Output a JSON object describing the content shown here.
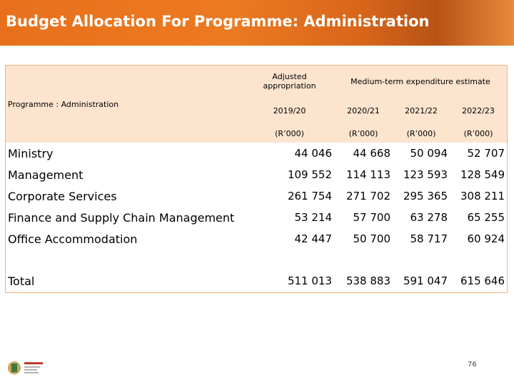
{
  "header": {
    "title": "Budget Allocation For Programme: Administration"
  },
  "table": {
    "programme_label": "Programme : Administration",
    "adjusted_header": "Adjusted appropriation",
    "mtef_header": "Medium-term expenditure estimate",
    "years": [
      "2019/20",
      "2020/21",
      "2021/22",
      "2022/23"
    ],
    "units": [
      "(R’000)",
      "(R’000)",
      "(R’000)",
      "(R’000)"
    ],
    "rows": [
      [
        "Ministry",
        "44 046",
        "44 668",
        "50 094",
        "52 707"
      ],
      [
        "Management",
        "109 552",
        "114 113",
        "123 593",
        "128 549"
      ],
      [
        "Corporate Services",
        "261 754",
        "271 702",
        "295 365",
        "308 211"
      ],
      [
        "Finance and Supply Chain Management",
        "53 214",
        "57 700",
        "63 278",
        "65 255"
      ],
      [
        "Office Accommodation",
        "42 447",
        "50 700",
        "58 717",
        "60 924"
      ]
    ],
    "total": [
      "Total",
      "511 013",
      "538 883",
      "591 047",
      "615 646"
    ]
  },
  "footer": {
    "page": "76"
  }
}
